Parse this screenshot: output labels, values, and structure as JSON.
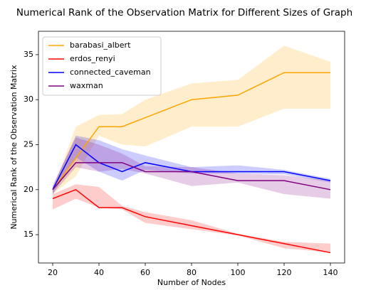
{
  "chart_data": {
    "type": "line",
    "title": "Numerical Rank of the Observation Matrix for Different Sizes of Graph",
    "x_label": "Number of Nodes",
    "y_label": "Numerical Rank of the Observation Matrix",
    "x": [
      20,
      30,
      40,
      50,
      60,
      80,
      100,
      120,
      140
    ],
    "xlim": [
      13.85,
      146.15
    ],
    "ylim": [
      11.85,
      37.6
    ],
    "xticks": [
      20,
      40,
      60,
      80,
      100,
      120,
      140
    ],
    "yticks": [
      15,
      20,
      25,
      30,
      35
    ],
    "legend": "upper left",
    "series": [
      {
        "name": "barabasi_albert",
        "color": "#ffa500",
        "values": [
          20,
          23.5,
          27,
          27,
          28,
          30,
          30.5,
          33,
          33
        ],
        "upper": [
          20,
          27,
          28.3,
          28.4,
          30,
          31.8,
          32.2,
          36,
          34.2
        ],
        "lower": [
          19.5,
          21.5,
          26,
          25,
          24.8,
          27,
          27,
          29,
          29
        ]
      },
      {
        "name": "erdos_renyi",
        "color": "#ff0000",
        "values": [
          19,
          20,
          18,
          18,
          17,
          16,
          15,
          14,
          13
        ],
        "upper": [
          19.5,
          20.6,
          20.3,
          18.2,
          17.5,
          16.6,
          15.1,
          14.2,
          14
        ],
        "lower": [
          17.8,
          19,
          18,
          17.8,
          16.3,
          15.6,
          14.9,
          13.5,
          13
        ]
      },
      {
        "name": "connected_caveman",
        "color": "#0000ff",
        "values": [
          20,
          25,
          23,
          22,
          23,
          22,
          22,
          22,
          21
        ],
        "upper": [
          20.3,
          26,
          25.5,
          24.5,
          23.8,
          22.5,
          22.7,
          22.2,
          21.2
        ],
        "lower": [
          19.5,
          23.6,
          22,
          21,
          22.2,
          21.8,
          21.8,
          21.7,
          20.8
        ]
      },
      {
        "name": "waxman",
        "color": "#800080",
        "values": [
          20,
          23,
          23,
          23,
          22,
          22,
          21,
          21,
          20
        ],
        "upper": [
          20.5,
          25.8,
          25,
          24,
          22.6,
          22.5,
          21.8,
          21.6,
          21
        ],
        "lower": [
          19.5,
          22.5,
          22,
          22.3,
          21.8,
          20.4,
          20.8,
          19.5,
          19
        ]
      }
    ]
  }
}
